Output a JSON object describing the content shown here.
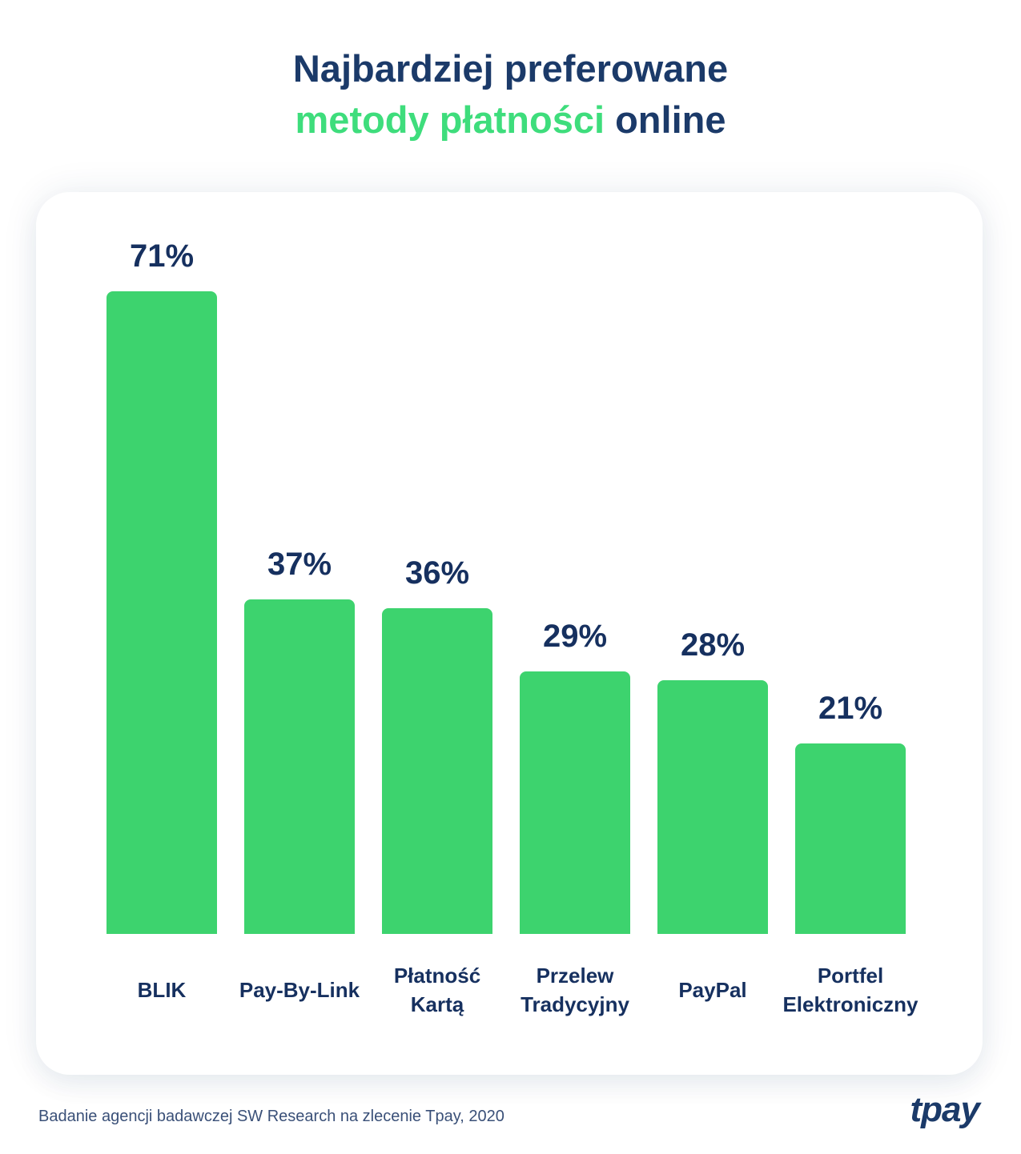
{
  "header": {
    "title_line1": "Najbardziej preferowane",
    "title_line2_highlight": "metody płatności",
    "title_line2_rest": "online"
  },
  "chart_data": {
    "type": "bar",
    "title": "Najbardziej preferowane metody płatności online",
    "categories": [
      "BLIK",
      "Pay-By-Link",
      "Płatność Kartą",
      "Przelew Tradycyjny",
      "PayPal",
      "Portfel Elektroniczny"
    ],
    "values": [
      71,
      37,
      36,
      29,
      28,
      21
    ],
    "value_labels": [
      "71%",
      "37%",
      "36%",
      "29%",
      "28%",
      "21%"
    ],
    "unit": "%",
    "ylim": [
      0,
      71
    ],
    "grid": false,
    "legend": false,
    "bar_color": "#3dd36e",
    "value_label_color": "#16305f",
    "category_label_color": "#16305f"
  },
  "footer": {
    "source": "Badanie agencji badawczej SW Research na zlecenie Tpay, 2020",
    "logo_text": "tpay"
  },
  "theme": {
    "navy": "#1b3a69",
    "title_green": "#3edd7c",
    "bar_green": "#3dd36e",
    "card_background": "#ffffff",
    "page_background": "#ffffff"
  }
}
